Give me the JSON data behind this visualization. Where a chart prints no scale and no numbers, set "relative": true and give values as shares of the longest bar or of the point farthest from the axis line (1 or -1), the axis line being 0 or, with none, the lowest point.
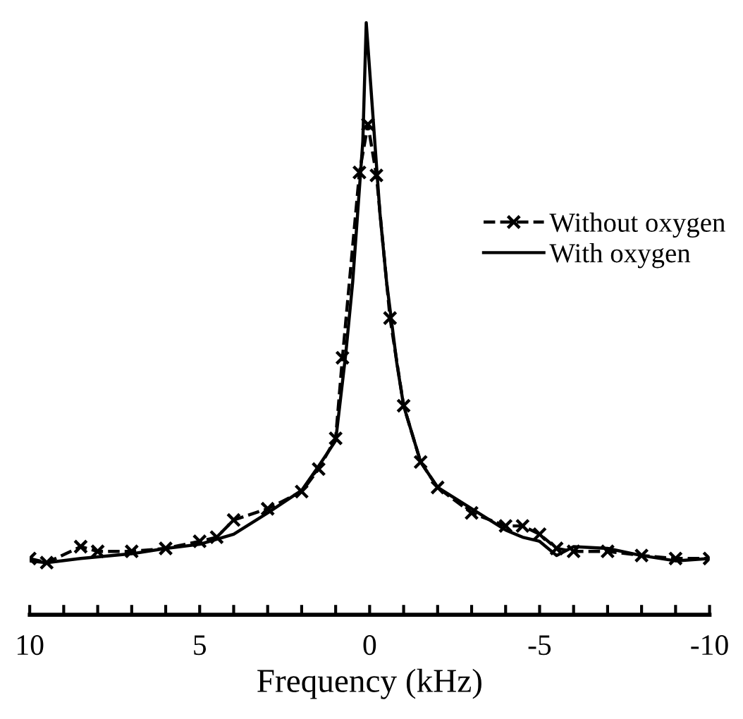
{
  "chart_data": {
    "type": "line",
    "relative": true,
    "xlabel": "Frequency (kHz)",
    "xlim": [
      10,
      -10
    ],
    "xticks": [
      10,
      {
        "value": 9,
        "label": null
      },
      {
        "value": 8,
        "label": null
      },
      {
        "value": 7,
        "label": null
      },
      {
        "value": 6,
        "label": null
      },
      5,
      {
        "value": 4,
        "label": null
      },
      {
        "value": 3,
        "label": null
      },
      {
        "value": 2,
        "label": null
      },
      {
        "value": 1,
        "label": null
      },
      0,
      {
        "value": -1,
        "label": null
      },
      {
        "value": -2,
        "label": null
      },
      {
        "value": -3,
        "label": null
      },
      {
        "value": -4,
        "label": null
      },
      -5,
      {
        "value": -6,
        "label": null
      },
      {
        "value": -7,
        "label": null
      },
      {
        "value": -8,
        "label": null
      },
      {
        "value": -9,
        "label": null
      },
      -10
    ],
    "tick_labels": "x",
    "grid": false,
    "legend": "right",
    "series": [
      {
        "name": "Without oxygen",
        "color": "#000000",
        "line_style": "dashed",
        "marker": "cross",
        "x": [
          10,
          9.5,
          8.5,
          8,
          7,
          6,
          5,
          4.5,
          4,
          3,
          2,
          1.5,
          1,
          0.8,
          0.3,
          0.05,
          -0.2,
          -0.6,
          -1,
          -1.5,
          -2,
          -3,
          -4,
          -4.5,
          -5,
          -5.5,
          -6,
          -7,
          -8,
          -9,
          -10
        ],
        "values": [
          0.095,
          0.088,
          0.115,
          0.107,
          0.107,
          0.112,
          0.124,
          0.131,
          0.16,
          0.179,
          0.208,
          0.246,
          0.298,
          0.434,
          0.747,
          0.828,
          0.742,
          0.501,
          0.353,
          0.258,
          0.215,
          0.172,
          0.15,
          0.15,
          0.136,
          0.112,
          0.107,
          0.107,
          0.1,
          0.095,
          0.095
        ]
      },
      {
        "name": "With oxygen",
        "color": "#000000",
        "line_style": "solid",
        "marker": "none",
        "x": [
          10,
          9.5,
          8.5,
          7,
          6,
          5,
          4,
          3,
          2,
          1.5,
          1,
          0.7,
          0.5,
          0.2,
          0.1,
          -0.3,
          -0.5,
          -0.8,
          -1,
          -1.5,
          -2,
          -3,
          -4,
          -4.5,
          -5,
          -5.5,
          -6,
          -7,
          -8,
          -9,
          -10
        ],
        "values": [
          0.091,
          0.088,
          0.095,
          0.103,
          0.112,
          0.119,
          0.136,
          0.172,
          0.21,
          0.251,
          0.294,
          0.442,
          0.561,
          0.8,
          1.0,
          0.68,
          0.561,
          0.425,
          0.353,
          0.258,
          0.215,
          0.179,
          0.143,
          0.131,
          0.124,
          0.1,
          0.115,
          0.112,
          0.1,
          0.091,
          0.095
        ]
      }
    ]
  }
}
